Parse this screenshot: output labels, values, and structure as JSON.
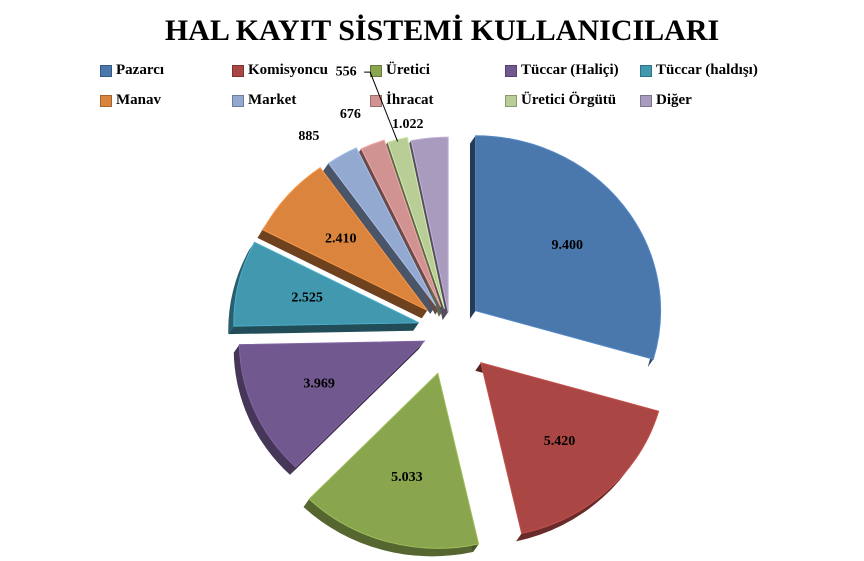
{
  "chart_data": {
    "type": "pie",
    "title": "HAL KAYIT SİSTEMİ KULLANICILARI",
    "legend_position": "top",
    "slices": [
      {
        "name": "Pazarcı",
        "value": 9400,
        "label": "9.400",
        "color": "#4a77ac"
      },
      {
        "name": "Komisyoncu",
        "value": 5420,
        "label": "5.420",
        "color": "#aa4643"
      },
      {
        "name": "Üretici",
        "value": 5033,
        "label": "5.033",
        "color": "#89a54e"
      },
      {
        "name": "Tüccar (Haliçi)",
        "value": 3969,
        "label": "3.969",
        "color": "#71588f"
      },
      {
        "name": "Tüccar (haldışı)",
        "value": 2525,
        "label": "2.525",
        "color": "#4198af"
      },
      {
        "name": "Manav",
        "value": 2410,
        "label": "2.410",
        "color": "#db843d"
      },
      {
        "name": "Market",
        "value": 885,
        "label": "885",
        "color": "#93a9cf"
      },
      {
        "name": "İhracat",
        "value": 676,
        "label": "676",
        "color": "#d19392"
      },
      {
        "name": "Üretici Örgütü",
        "value": 556,
        "label": "556",
        "color": "#b9cd96"
      },
      {
        "name": "Diğer",
        "value": 1022,
        "label": "1.022",
        "color": "#a99bbd"
      }
    ]
  }
}
